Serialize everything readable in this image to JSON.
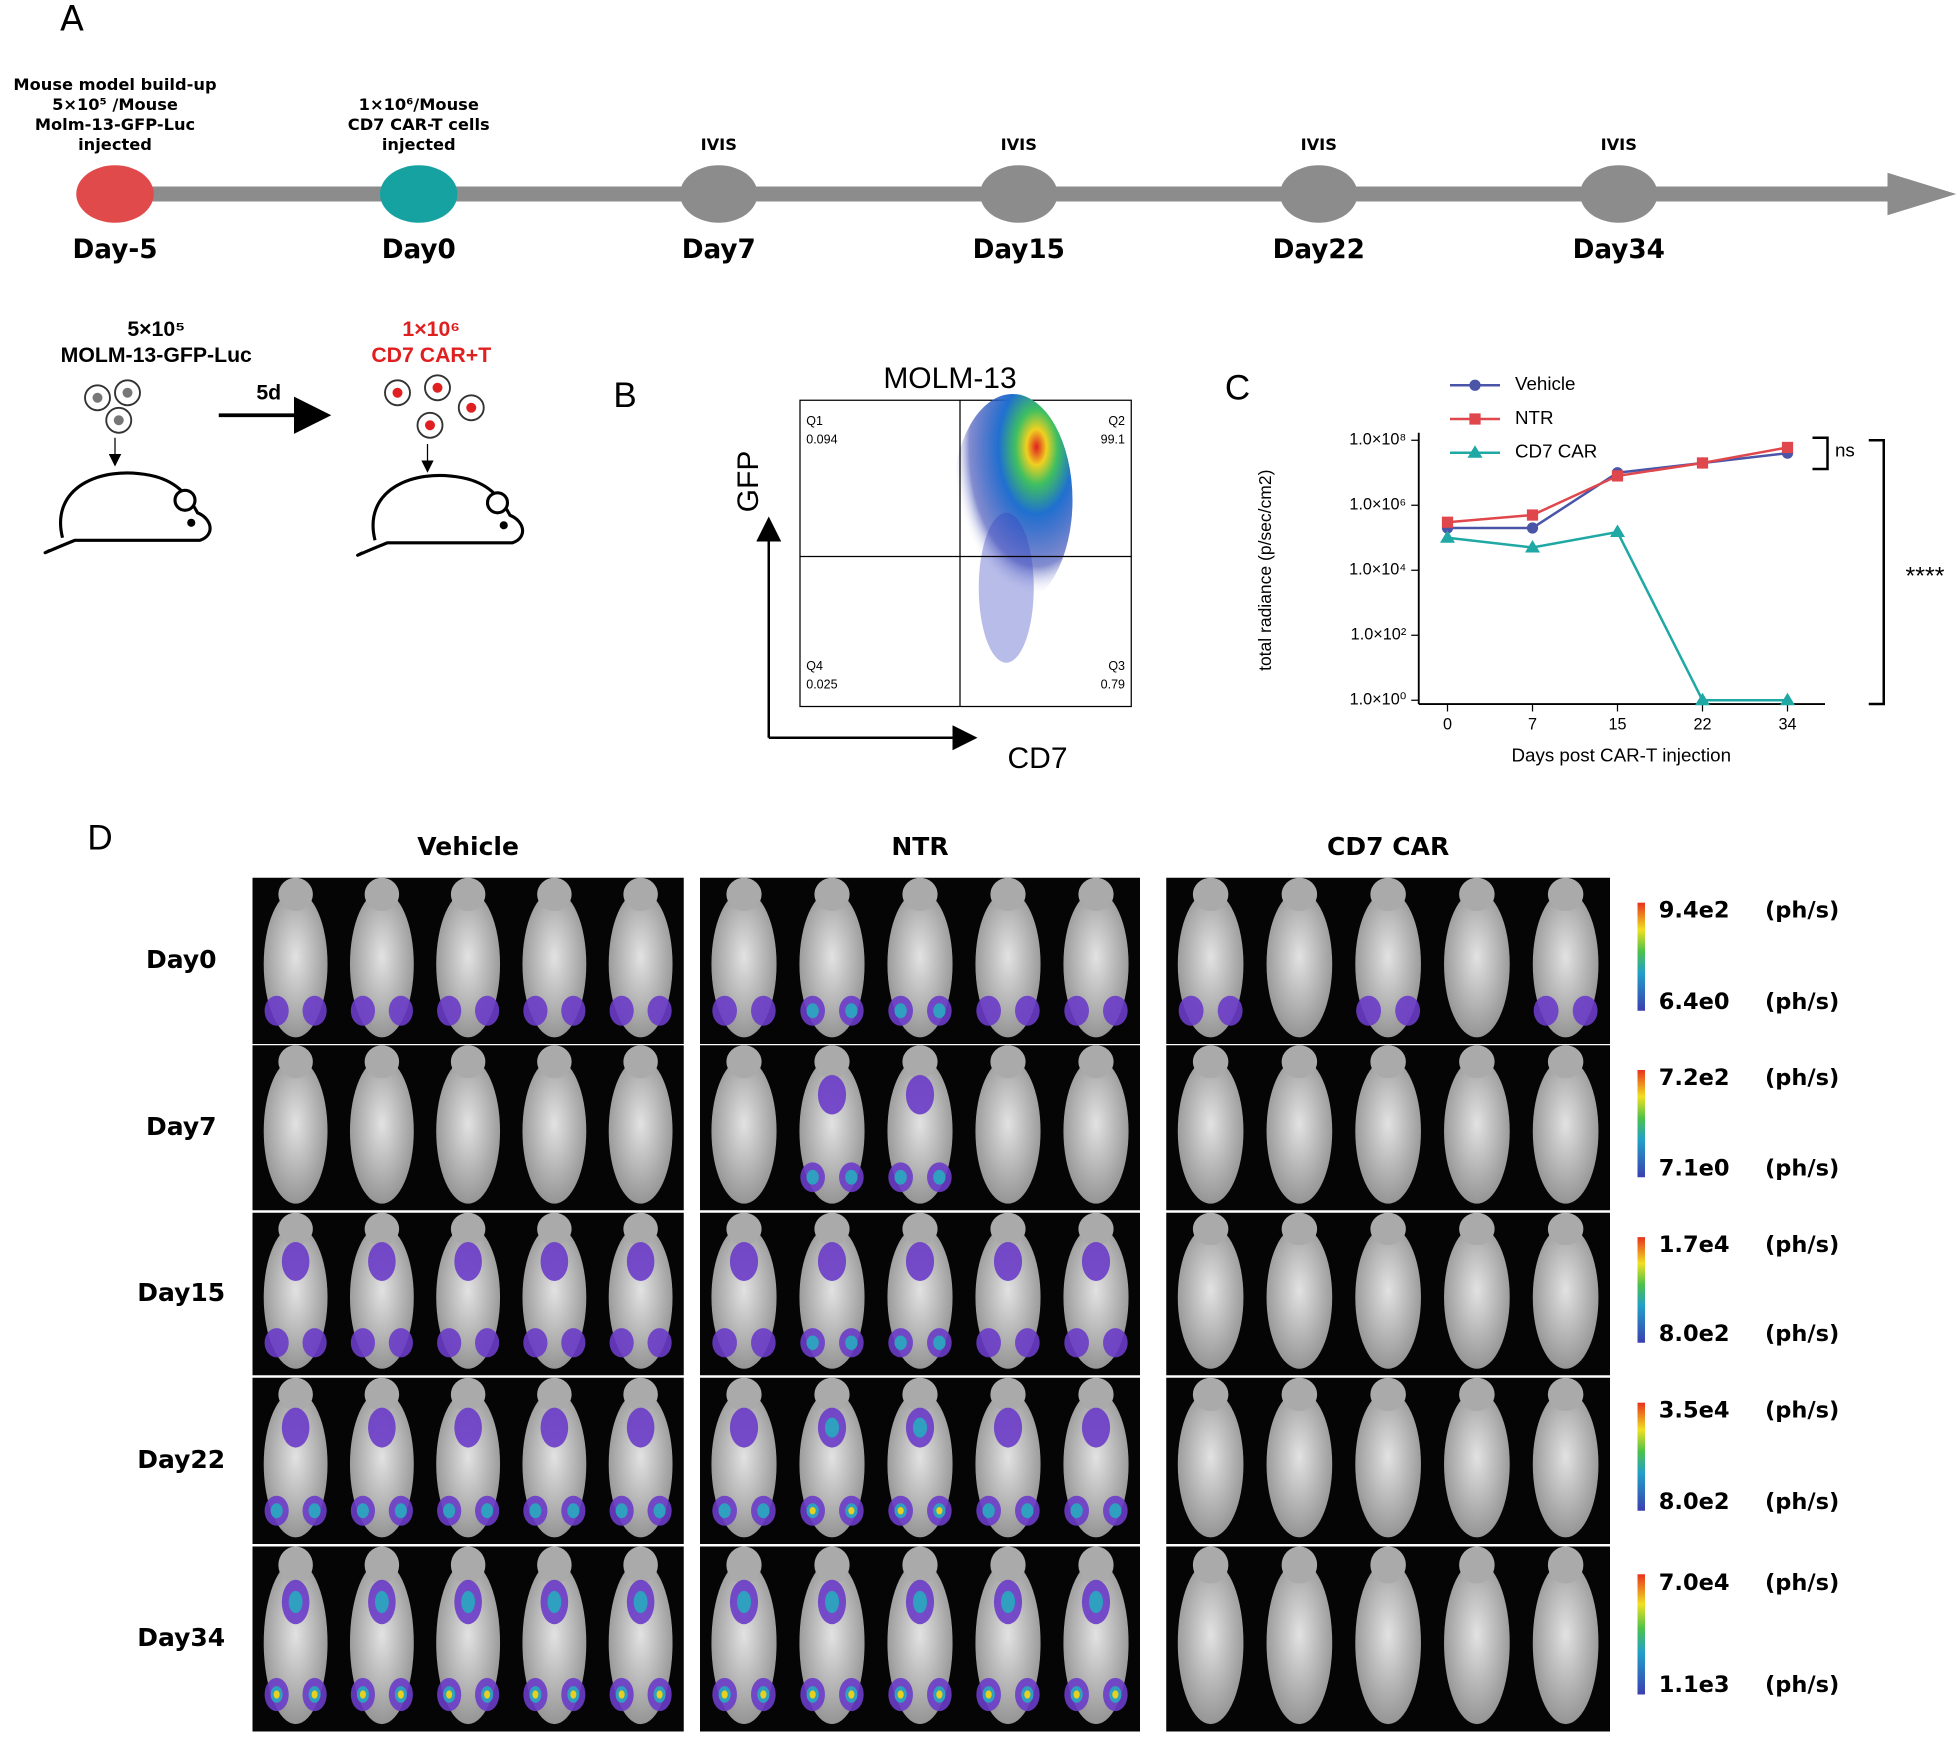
{
  "panel_a": {
    "label": "A",
    "events": [
      {
        "lines": [
          "Mouse model build-up",
          "5×10⁵ /Mouse",
          "Molm-13-GFP-Luc",
          "injected"
        ],
        "day": "Day-5",
        "color": "#e04a4a"
      },
      {
        "lines": [
          "1×10⁶/Mouse",
          "CD7 CAR-T cells",
          "injected"
        ],
        "day": "Day0",
        "color": "#17a2a2"
      },
      {
        "lines": [
          "IVIS"
        ],
        "day": "Day7",
        "color": "#8c8c8c"
      },
      {
        "lines": [
          "IVIS"
        ],
        "day": "Day15",
        "color": "#8c8c8c"
      },
      {
        "lines": [
          "IVIS"
        ],
        "day": "Day22",
        "color": "#8c8c8c"
      },
      {
        "lines": [
          "IVIS"
        ],
        "day": "Day34",
        "color": "#8c8c8c"
      }
    ],
    "schematic": {
      "cells_label": [
        "5×10⁵",
        "MOLM-13-GFP-Luc"
      ],
      "interval": "5d",
      "car_label": [
        "1×10⁶",
        "CD7 CAR+T"
      ]
    }
  },
  "panel_b": {
    "label": "B",
    "title": "MOLM-13",
    "y_label": "GFP",
    "x_label": "CD7",
    "quadrants": [
      {
        "name": "Q1",
        "value": 0.094
      },
      {
        "name": "Q2",
        "value": 99.1
      },
      {
        "name": "Q3",
        "value": 0.79
      },
      {
        "name": "Q4",
        "value": 0.025
      }
    ]
  },
  "chart_data": {
    "type": "line",
    "panel_label": "C",
    "y_label": "total radiance (p/sec/cm2)",
    "x_label": "Days post CAR-T injection",
    "categories": [
      "0",
      "7",
      "15",
      "22",
      "34"
    ],
    "log_scale": true,
    "ylim": [
      1,
      100000000
    ],
    "yticks": [
      {
        "value": 1,
        "label": "1.0×10⁰"
      },
      {
        "value": 100,
        "label": "1.0×10²"
      },
      {
        "value": 10000,
        "label": "1.0×10⁴"
      },
      {
        "value": 1000000,
        "label": "1.0×10⁶"
      },
      {
        "value": 100000000,
        "label": "1.0×10⁸"
      }
    ],
    "legend": "top-left",
    "series": [
      {
        "name": "Vehicle",
        "color": "#4a55a8",
        "marker": "circle",
        "values": [
          200000,
          200000,
          10000000,
          20000000,
          40000000
        ]
      },
      {
        "name": "NTR",
        "color": "#e0474c",
        "marker": "square",
        "values": [
          300000,
          500000,
          8000000,
          20000000,
          60000000
        ]
      },
      {
        "name": "CD7 CAR",
        "color": "#1fa8a4",
        "marker": "triangle",
        "values": [
          100000,
          50000,
          150000,
          1,
          1
        ]
      }
    ],
    "annotations": [
      "ns",
      "****"
    ]
  },
  "panel_d": {
    "label": "D",
    "groups": [
      "Vehicle",
      "NTR",
      "CD7 CAR"
    ],
    "unit": "(ph/s)",
    "rows": [
      {
        "day": "Day0",
        "scale_max": "9.4e2",
        "scale_min": "6.4e0"
      },
      {
        "day": "Day7",
        "scale_max": "7.2e2",
        "scale_min": "7.1e0"
      },
      {
        "day": "Day15",
        "scale_max": "1.7e4",
        "scale_min": "8.0e2"
      },
      {
        "day": "Day22",
        "scale_max": "3.5e4",
        "scale_min": "8.0e2"
      },
      {
        "day": "Day34",
        "scale_max": "7.0e4",
        "scale_min": "1.1e3"
      }
    ]
  }
}
